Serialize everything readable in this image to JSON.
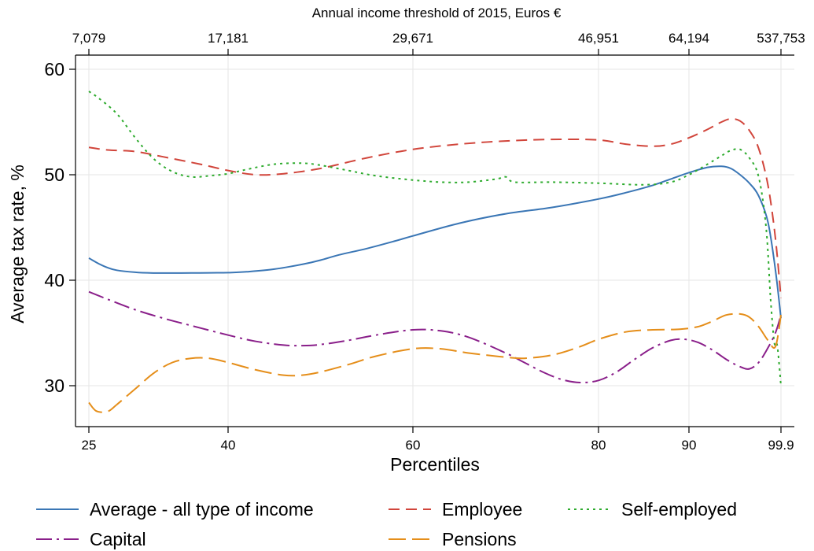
{
  "chart_data": {
    "type": "line",
    "xlabel": "Percentiles",
    "ylabel": "Average tax rate, %",
    "top_axis_label": "Annual income threshold of 2015, Euros €",
    "x_ticks": [
      25,
      40,
      60,
      80,
      90,
      99.9
    ],
    "x_tick_labels": [
      "25",
      "40",
      "60",
      "80",
      "90",
      "99.9"
    ],
    "top_ticks": [
      25,
      40,
      60,
      80,
      90,
      99.9
    ],
    "top_tick_labels": [
      "7,079",
      "17,181",
      "29,671",
      "46,951",
      "64,194",
      "537,753"
    ],
    "y_ticks": [
      30,
      40,
      50,
      60
    ],
    "y_tick_labels": [
      "30",
      "40",
      "50",
      "60"
    ],
    "ylim": [
      27,
      61.5
    ],
    "grid": true,
    "legend_position": "bottom",
    "series": [
      {
        "name": "Average - all type of income",
        "color": "#3a76b5",
        "dash": "solid",
        "points": [
          [
            25,
            42.1
          ],
          [
            26,
            41.6
          ],
          [
            27,
            41.2
          ],
          [
            28,
            40.95
          ],
          [
            30,
            40.75
          ],
          [
            32,
            40.68
          ],
          [
            35,
            40.68
          ],
          [
            38,
            40.7
          ],
          [
            40,
            40.72
          ],
          [
            42,
            40.8
          ],
          [
            45,
            41.05
          ],
          [
            48,
            41.5
          ],
          [
            50,
            41.9
          ],
          [
            52,
            42.4
          ],
          [
            55,
            43.0
          ],
          [
            58,
            43.7
          ],
          [
            60,
            44.2
          ],
          [
            65,
            45.4
          ],
          [
            70,
            46.3
          ],
          [
            75,
            46.9
          ],
          [
            80,
            47.7
          ],
          [
            83,
            48.3
          ],
          [
            86,
            49.0
          ],
          [
            88,
            49.6
          ],
          [
            90,
            50.2
          ],
          [
            92,
            50.7
          ],
          [
            93.5,
            50.8
          ],
          [
            94.5,
            50.6
          ],
          [
            95.5,
            50.0
          ],
          [
            96.5,
            49.2
          ],
          [
            97.5,
            48.0
          ],
          [
            98.5,
            45.5
          ],
          [
            99.3,
            41.0
          ],
          [
            99.9,
            36.4
          ]
        ]
      },
      {
        "name": "Employee",
        "color": "#d1453b",
        "dash": "14,8",
        "points": [
          [
            25,
            52.6
          ],
          [
            27,
            52.35
          ],
          [
            30,
            52.2
          ],
          [
            33,
            51.7
          ],
          [
            37,
            51.0
          ],
          [
            40,
            50.4
          ],
          [
            43,
            50.0
          ],
          [
            46,
            50.1
          ],
          [
            50,
            50.6
          ],
          [
            55,
            51.6
          ],
          [
            60,
            52.4
          ],
          [
            65,
            52.9
          ],
          [
            70,
            53.2
          ],
          [
            75,
            53.35
          ],
          [
            80,
            53.3
          ],
          [
            83,
            52.9
          ],
          [
            86,
            52.7
          ],
          [
            88,
            52.9
          ],
          [
            90,
            53.5
          ],
          [
            92,
            54.3
          ],
          [
            93.5,
            55.0
          ],
          [
            94.5,
            55.3
          ],
          [
            95.5,
            55.1
          ],
          [
            96.5,
            54.2
          ],
          [
            97.5,
            52.5
          ],
          [
            98.5,
            49.0
          ],
          [
            99.3,
            44.0
          ],
          [
            99.9,
            38.3
          ]
        ]
      },
      {
        "name": "Self-employed",
        "color": "#2eab2e",
        "dash": "3,5",
        "points": [
          [
            25,
            57.9
          ],
          [
            26,
            57.3
          ],
          [
            28,
            55.8
          ],
          [
            30,
            53.5
          ],
          [
            32,
            51.5
          ],
          [
            34,
            50.3
          ],
          [
            36,
            49.8
          ],
          [
            38,
            49.9
          ],
          [
            40,
            50.1
          ],
          [
            42,
            50.5
          ],
          [
            45,
            51.0
          ],
          [
            48,
            51.1
          ],
          [
            50,
            50.9
          ],
          [
            53,
            50.4
          ],
          [
            56,
            49.9
          ],
          [
            60,
            49.5
          ],
          [
            63,
            49.3
          ],
          [
            66,
            49.3
          ],
          [
            69,
            49.6
          ],
          [
            70,
            49.8
          ],
          [
            71,
            49.3
          ],
          [
            75,
            49.3
          ],
          [
            80,
            49.2
          ],
          [
            85,
            49.05
          ],
          [
            88,
            49.3
          ],
          [
            90,
            50.0
          ],
          [
            92,
            51.0
          ],
          [
            93.5,
            51.8
          ],
          [
            94.5,
            52.3
          ],
          [
            95.5,
            52.4
          ],
          [
            96.5,
            51.6
          ],
          [
            97.5,
            49.8
          ],
          [
            98.3,
            45.0
          ],
          [
            98.8,
            38.0
          ],
          [
            99.2,
            34.0
          ],
          [
            99.5,
            33.8
          ],
          [
            99.9,
            30.0
          ]
        ]
      },
      {
        "name": "Capital",
        "color": "#8a1f8a",
        "dash": "20,6,3,6",
        "points": [
          [
            25,
            38.9
          ],
          [
            27,
            38.2
          ],
          [
            30,
            37.2
          ],
          [
            33,
            36.4
          ],
          [
            36,
            35.7
          ],
          [
            40,
            34.8
          ],
          [
            43,
            34.2
          ],
          [
            46,
            33.85
          ],
          [
            48,
            33.8
          ],
          [
            50,
            33.9
          ],
          [
            53,
            34.3
          ],
          [
            56,
            34.8
          ],
          [
            60,
            35.3
          ],
          [
            63,
            35.2
          ],
          [
            66,
            34.6
          ],
          [
            70,
            33.1
          ],
          [
            72,
            32.2
          ],
          [
            74,
            31.3
          ],
          [
            76,
            30.6
          ],
          [
            78,
            30.3
          ],
          [
            80,
            30.5
          ],
          [
            82,
            31.3
          ],
          [
            84,
            32.5
          ],
          [
            86,
            33.6
          ],
          [
            88,
            34.3
          ],
          [
            89.5,
            34.4
          ],
          [
            91,
            34.1
          ],
          [
            92.5,
            33.4
          ],
          [
            94,
            32.5
          ],
          [
            95.5,
            31.8
          ],
          [
            96.5,
            31.6
          ],
          [
            97.5,
            32.2
          ],
          [
            98.5,
            33.6
          ],
          [
            99.3,
            35.0
          ],
          [
            99.9,
            36.7
          ]
        ]
      },
      {
        "name": "Pensions",
        "color": "#e58e1a",
        "dash": "22,8",
        "points": [
          [
            25,
            28.4
          ],
          [
            25.8,
            27.6
          ],
          [
            27,
            27.55
          ],
          [
            28,
            28.2
          ],
          [
            30,
            29.7
          ],
          [
            32,
            31.2
          ],
          [
            34,
            32.2
          ],
          [
            36,
            32.6
          ],
          [
            38,
            32.6
          ],
          [
            40,
            32.2
          ],
          [
            43,
            31.5
          ],
          [
            46,
            31.0
          ],
          [
            48,
            31.0
          ],
          [
            50,
            31.3
          ],
          [
            53,
            32.0
          ],
          [
            56,
            32.8
          ],
          [
            60,
            33.5
          ],
          [
            63,
            33.5
          ],
          [
            66,
            33.1
          ],
          [
            70,
            32.7
          ],
          [
            72,
            32.6
          ],
          [
            75,
            32.9
          ],
          [
            78,
            33.7
          ],
          [
            80,
            34.4
          ],
          [
            83,
            35.1
          ],
          [
            86,
            35.3
          ],
          [
            89,
            35.35
          ],
          [
            91,
            35.6
          ],
          [
            92.5,
            36.1
          ],
          [
            94,
            36.7
          ],
          [
            95.5,
            36.8
          ],
          [
            96.5,
            36.5
          ],
          [
            97.5,
            35.6
          ],
          [
            98.5,
            34.3
          ],
          [
            99.3,
            33.7
          ],
          [
            99.9,
            36.7
          ]
        ]
      }
    ]
  }
}
